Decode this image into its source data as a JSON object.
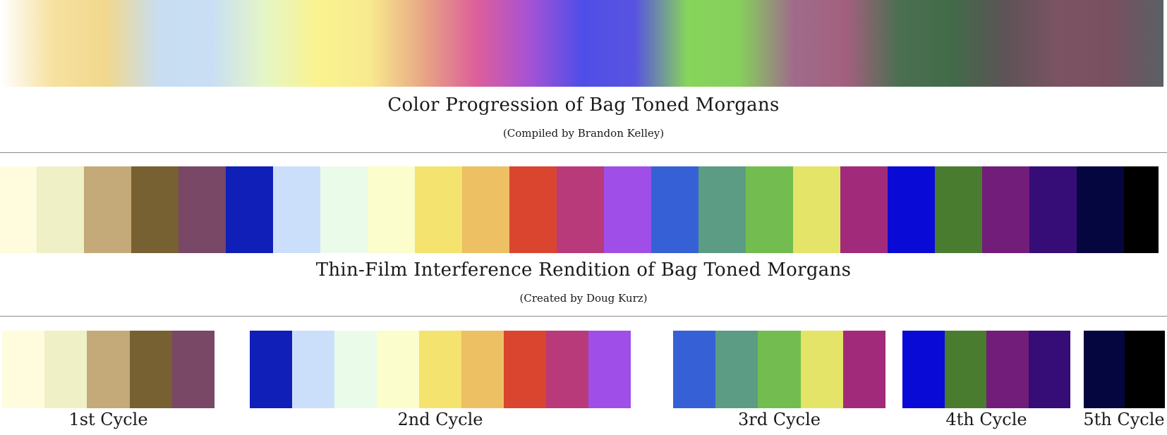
{
  "progression": {
    "title": "Color Progression of Bag Toned Morgans",
    "credit": "(Compiled by Brandon Kelley)",
    "gradient_stops": [
      "#ffffff",
      "#f6e1a0",
      "#f1d88d",
      "#c8ddf1",
      "#c9def4",
      "#e4f6c7",
      "#faf38f",
      "#f8e98f",
      "#e8a785",
      "#dd5f99",
      "#a752d4",
      "#4f4ee8",
      "#5853e0",
      "#87d55b",
      "#86cf5c",
      "#9f6b8b",
      "#a3607e",
      "#4b6f51",
      "#416b49",
      "#5d5357",
      "#7b5363",
      "#78505f",
      "#5a6065"
    ]
  },
  "thin_film": {
    "title": "Thin-Film Interference Rendition of Bag Toned Morgans",
    "credit": "(Created by Doug Kurz)",
    "swatches": [
      "#fefcdd",
      "#eff0c6",
      "#c4aa78",
      "#776032",
      "#784866",
      "#0f1fb8",
      "#cbdffa",
      "#ebfbe9",
      "#fbfdcd",
      "#f4e36e",
      "#edc064",
      "#d9452f",
      "#b93a7a",
      "#a04ee8",
      "#3661d6",
      "#5c9c84",
      "#73bd50",
      "#e4e468",
      "#a12b7a",
      "#0a0ad6",
      "#4a7c30",
      "#721d7a",
      "#360c77",
      "#050540",
      "#000000"
    ]
  },
  "cycles": [
    {
      "label": "1st Cycle",
      "swatches": [
        "#fefcdd",
        "#eff0c6",
        "#c4aa78",
        "#776032",
        "#784866"
      ]
    },
    {
      "label": "2nd Cycle",
      "swatches": [
        "#0f1fb8",
        "#cbdffa",
        "#ebfbe9",
        "#fbfdcd",
        "#f4e36e",
        "#edc064",
        "#d9452f",
        "#b93a7a",
        "#a04ee8"
      ]
    },
    {
      "label": "3rd Cycle",
      "swatches": [
        "#3661d6",
        "#5c9c84",
        "#73bd50",
        "#e4e468",
        "#a12b7a"
      ]
    },
    {
      "label": "4th Cycle",
      "swatches": [
        "#0a0ad6",
        "#4a7c30",
        "#721d7a",
        "#360c77"
      ]
    },
    {
      "label": "5th Cycle",
      "swatches": [
        "#050540",
        "#000000"
      ]
    }
  ]
}
